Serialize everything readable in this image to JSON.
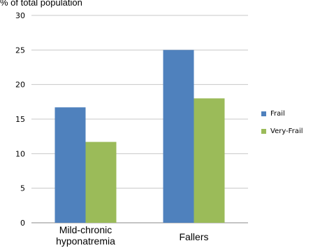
{
  "chart_data": {
    "type": "bar",
    "ylabel": "% of total population",
    "categories": [
      "Mild-chronic hyponatremia",
      "Fallers"
    ],
    "category_lines": [
      [
        "Mild-chronic",
        "hyponatremia"
      ],
      [
        "Fallers"
      ]
    ],
    "series": [
      {
        "name": "Frail",
        "values": [
          16.7,
          25
        ],
        "color": "#4f81bd"
      },
      {
        "name": "Very-Frail",
        "values": [
          11.7,
          18
        ],
        "color": "#9bbb59"
      }
    ],
    "ylim": [
      0,
      30
    ],
    "yticks": [
      0,
      5,
      10,
      15,
      20,
      25,
      30
    ],
    "grid": true,
    "legend_position": "right"
  }
}
